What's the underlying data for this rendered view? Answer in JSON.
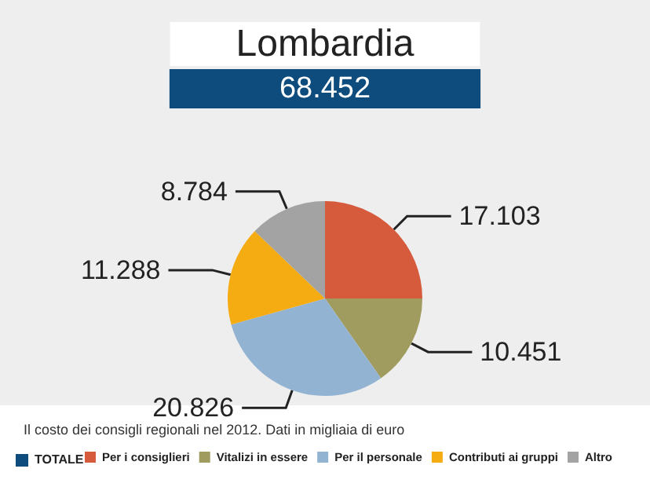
{
  "chart_data": {
    "type": "pie",
    "title": "Lombardia",
    "subtitle": "68.452",
    "legend_title": "TOTALE",
    "categories": [
      "Per i consiglieri",
      "Vitalizi in essere",
      "Per il personale",
      "Contributi ai gruppi",
      "Altro"
    ],
    "values": [
      17103,
      10451,
      20826,
      11288,
      8784
    ],
    "colors": [
      "#d65a3c",
      "#a09b5e",
      "#93b3d3",
      "#f5ab12",
      "#a3a3a3"
    ],
    "value_labels": [
      "17.103",
      "10.451",
      "20.826",
      "11.288",
      "8.784"
    ],
    "legend": "bottom",
    "annotations": [
      "Il costo dei consigli regionali nel 2012. Dati in migliaia di euro"
    ]
  }
}
